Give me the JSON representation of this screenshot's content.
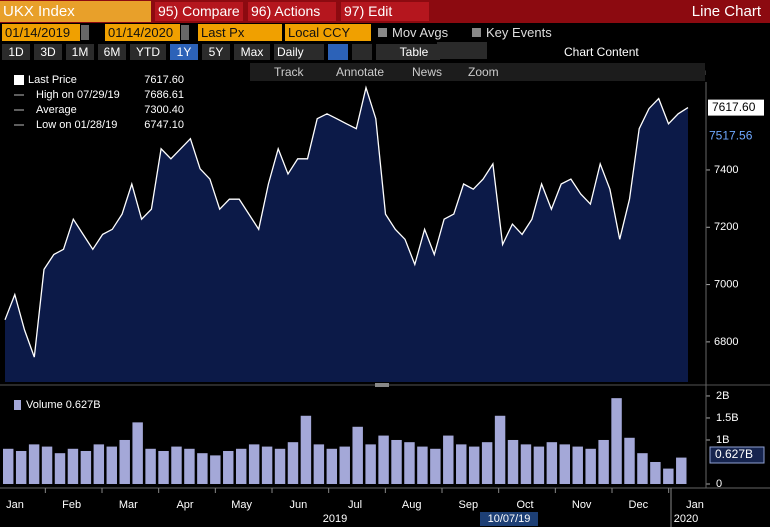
{
  "header": {
    "ticker": "UKX Index",
    "menus": [
      "95) Compare",
      "96) Actions",
      "97) Edit"
    ],
    "title": "Line Chart"
  },
  "controls": {
    "start_date": "01/14/2019",
    "end_date": "01/14/2020",
    "field": "Last Px",
    "currency": "Local CCY",
    "toggles": [
      "Mov Avgs",
      "Key Events"
    ],
    "periods": [
      "1D",
      "3D",
      "1M",
      "6M",
      "YTD",
      "1Y",
      "5Y",
      "Max"
    ],
    "active_period": "1Y",
    "frequency": "Daily",
    "table": "Table",
    "chart_content": "Chart Content"
  },
  "tools": [
    "Track",
    "Annotate",
    "News",
    "Zoom"
  ],
  "x_axis": {
    "months": [
      "Jan",
      "Feb",
      "Mar",
      "Apr",
      "May",
      "Jun",
      "Jul",
      "Aug",
      "Sep",
      "Oct",
      "Nov",
      "Dec",
      "Jan"
    ],
    "years": [
      "2019",
      "2020"
    ],
    "cursor_date": "10/07/19"
  },
  "chart_data": [
    {
      "type": "area",
      "legend": [
        {
          "label": "Last Price",
          "value": "7617.60"
        },
        {
          "label": "High on 07/29/19",
          "value": "7686.61"
        },
        {
          "label": "Average",
          "value": "7300.40"
        },
        {
          "label": "Low on 01/28/19",
          "value": "6747.10"
        }
      ],
      "values": [
        6877,
        6965,
        6842,
        6747,
        7053,
        7105,
        7123,
        7228,
        7175,
        7123,
        7175,
        7193,
        7246,
        7351,
        7228,
        7263,
        7474,
        7439,
        7474,
        7509,
        7404,
        7368,
        7263,
        7298,
        7298,
        7246,
        7193,
        7351,
        7474,
        7386,
        7439,
        7439,
        7579,
        7596,
        7579,
        7561,
        7544,
        7687,
        7579,
        7246,
        7193,
        7158,
        7070,
        7193,
        7105,
        7228,
        7246,
        7351,
        7333,
        7368,
        7421,
        7140,
        7211,
        7175,
        7228,
        7351,
        7263,
        7351,
        7368,
        7316,
        7281,
        7421,
        7333,
        7158,
        7298,
        7544,
        7614,
        7649,
        7561,
        7596,
        7617.6
      ],
      "ylim": [
        6660,
        7700
      ],
      "yticks": [
        6800,
        7000,
        7200,
        7400
      ],
      "last_label": "7617.60",
      "marker_label": "7517.56",
      "color": "#ffffff",
      "fill": "#0c1a48"
    },
    {
      "type": "bar",
      "legend": "Volume 0.627B",
      "values": [
        0.8,
        0.75,
        0.9,
        0.85,
        0.7,
        0.8,
        0.75,
        0.9,
        0.85,
        1.0,
        1.4,
        0.8,
        0.75,
        0.85,
        0.8,
        0.7,
        0.65,
        0.75,
        0.8,
        0.9,
        0.85,
        0.8,
        0.95,
        1.55,
        0.9,
        0.8,
        0.85,
        1.3,
        0.9,
        1.1,
        1.0,
        0.95,
        0.85,
        0.8,
        1.1,
        0.9,
        0.85,
        0.95,
        1.55,
        1.0,
        0.9,
        0.85,
        0.95,
        0.9,
        0.85,
        0.8,
        1.0,
        1.95,
        1.05,
        0.7,
        0.5,
        0.35,
        0.6
      ],
      "ylim": [
        0,
        2.09
      ],
      "yticks": [
        0,
        {
          "value": 1,
          "label": "1B"
        },
        {
          "value": 1.5,
          "label": "1.5B"
        },
        {
          "value": 2,
          "label": "2B"
        }
      ],
      "last_label": "0.627B",
      "color": "#a4a8d8"
    }
  ]
}
